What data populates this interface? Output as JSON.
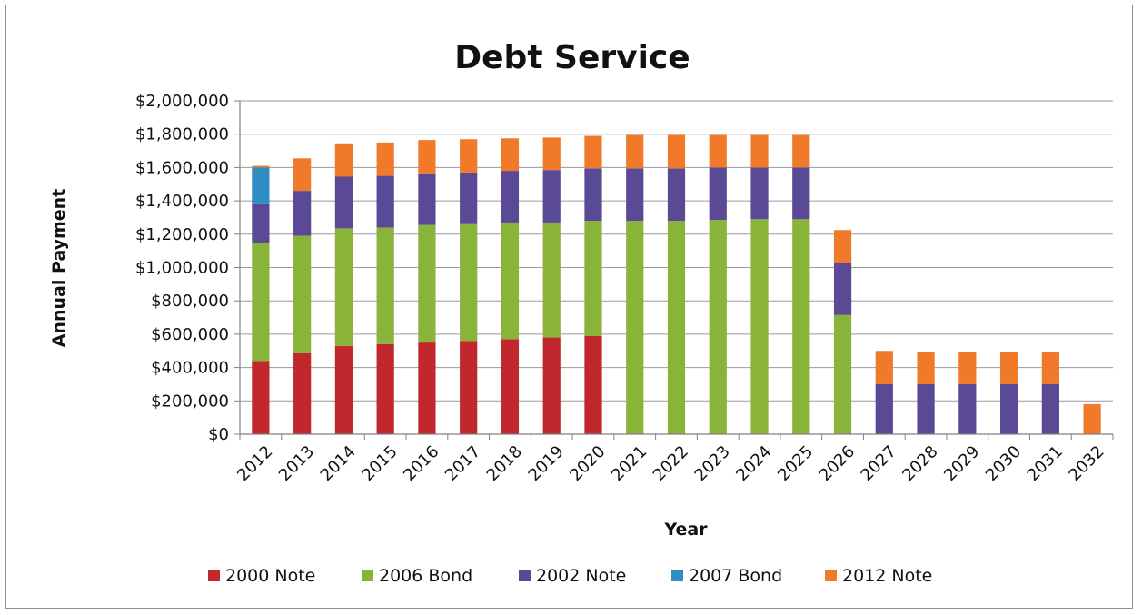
{
  "chart_data": {
    "type": "bar",
    "stacked": true,
    "title": "Debt Service",
    "xlabel": "Year",
    "ylabel": "Annual Payment",
    "ylim": [
      0,
      2000000
    ],
    "y_ticks": [
      0,
      200000,
      400000,
      600000,
      800000,
      1000000,
      1200000,
      1400000,
      1600000,
      1800000,
      2000000
    ],
    "y_tick_labels": [
      "$0",
      "$200,000",
      "$400,000",
      "$600,000",
      "$800,000",
      "$1,000,000",
      "$1,200,000",
      "$1,400,000",
      "$1,600,000",
      "$1,800,000",
      "$2,000,000"
    ],
    "grid": true,
    "legend_position": "bottom",
    "categories": [
      "2012",
      "2013",
      "2014",
      "2015",
      "2016",
      "2017",
      "2018",
      "2019",
      "2020",
      "2021",
      "2022",
      "2023",
      "2024",
      "2025",
      "2026",
      "2027",
      "2028",
      "2029",
      "2030",
      "2031",
      "2032"
    ],
    "series": [
      {
        "name": "2000 Note",
        "color": "#c0282e",
        "values": [
          440000,
          485000,
          530000,
          540000,
          550000,
          560000,
          570000,
          580000,
          590000,
          0,
          0,
          0,
          0,
          0,
          0,
          0,
          0,
          0,
          0,
          0,
          0
        ]
      },
      {
        "name": "2006 Bond",
        "color": "#8ab33a",
        "values": [
          710000,
          705000,
          705000,
          700000,
          705000,
          700000,
          700000,
          690000,
          690000,
          1280000,
          1280000,
          1285000,
          1290000,
          1290000,
          715000,
          0,
          0,
          0,
          0,
          0,
          0
        ]
      },
      {
        "name": "2002 Note",
        "color": "#5a4a96",
        "values": [
          230000,
          270000,
          310000,
          310000,
          310000,
          310000,
          310000,
          315000,
          315000,
          315000,
          315000,
          315000,
          310000,
          310000,
          310000,
          300000,
          300000,
          300000,
          300000,
          300000,
          0
        ]
      },
      {
        "name": "2007 Bond",
        "color": "#2f8dc3",
        "values": [
          220000,
          0,
          0,
          0,
          0,
          0,
          0,
          0,
          0,
          0,
          0,
          0,
          0,
          0,
          0,
          0,
          0,
          0,
          0,
          0,
          0
        ]
      },
      {
        "name": "2012 Note",
        "color": "#f07a2a",
        "values": [
          10000,
          195000,
          200000,
          200000,
          200000,
          200000,
          195000,
          195000,
          195000,
          200000,
          200000,
          195000,
          195000,
          195000,
          200000,
          200000,
          195000,
          195000,
          195000,
          195000,
          180000
        ]
      }
    ],
    "legend_order": [
      "2000 Note",
      "2006 Bond",
      "2002 Note",
      "2007 Bond",
      "2012 Note"
    ]
  }
}
